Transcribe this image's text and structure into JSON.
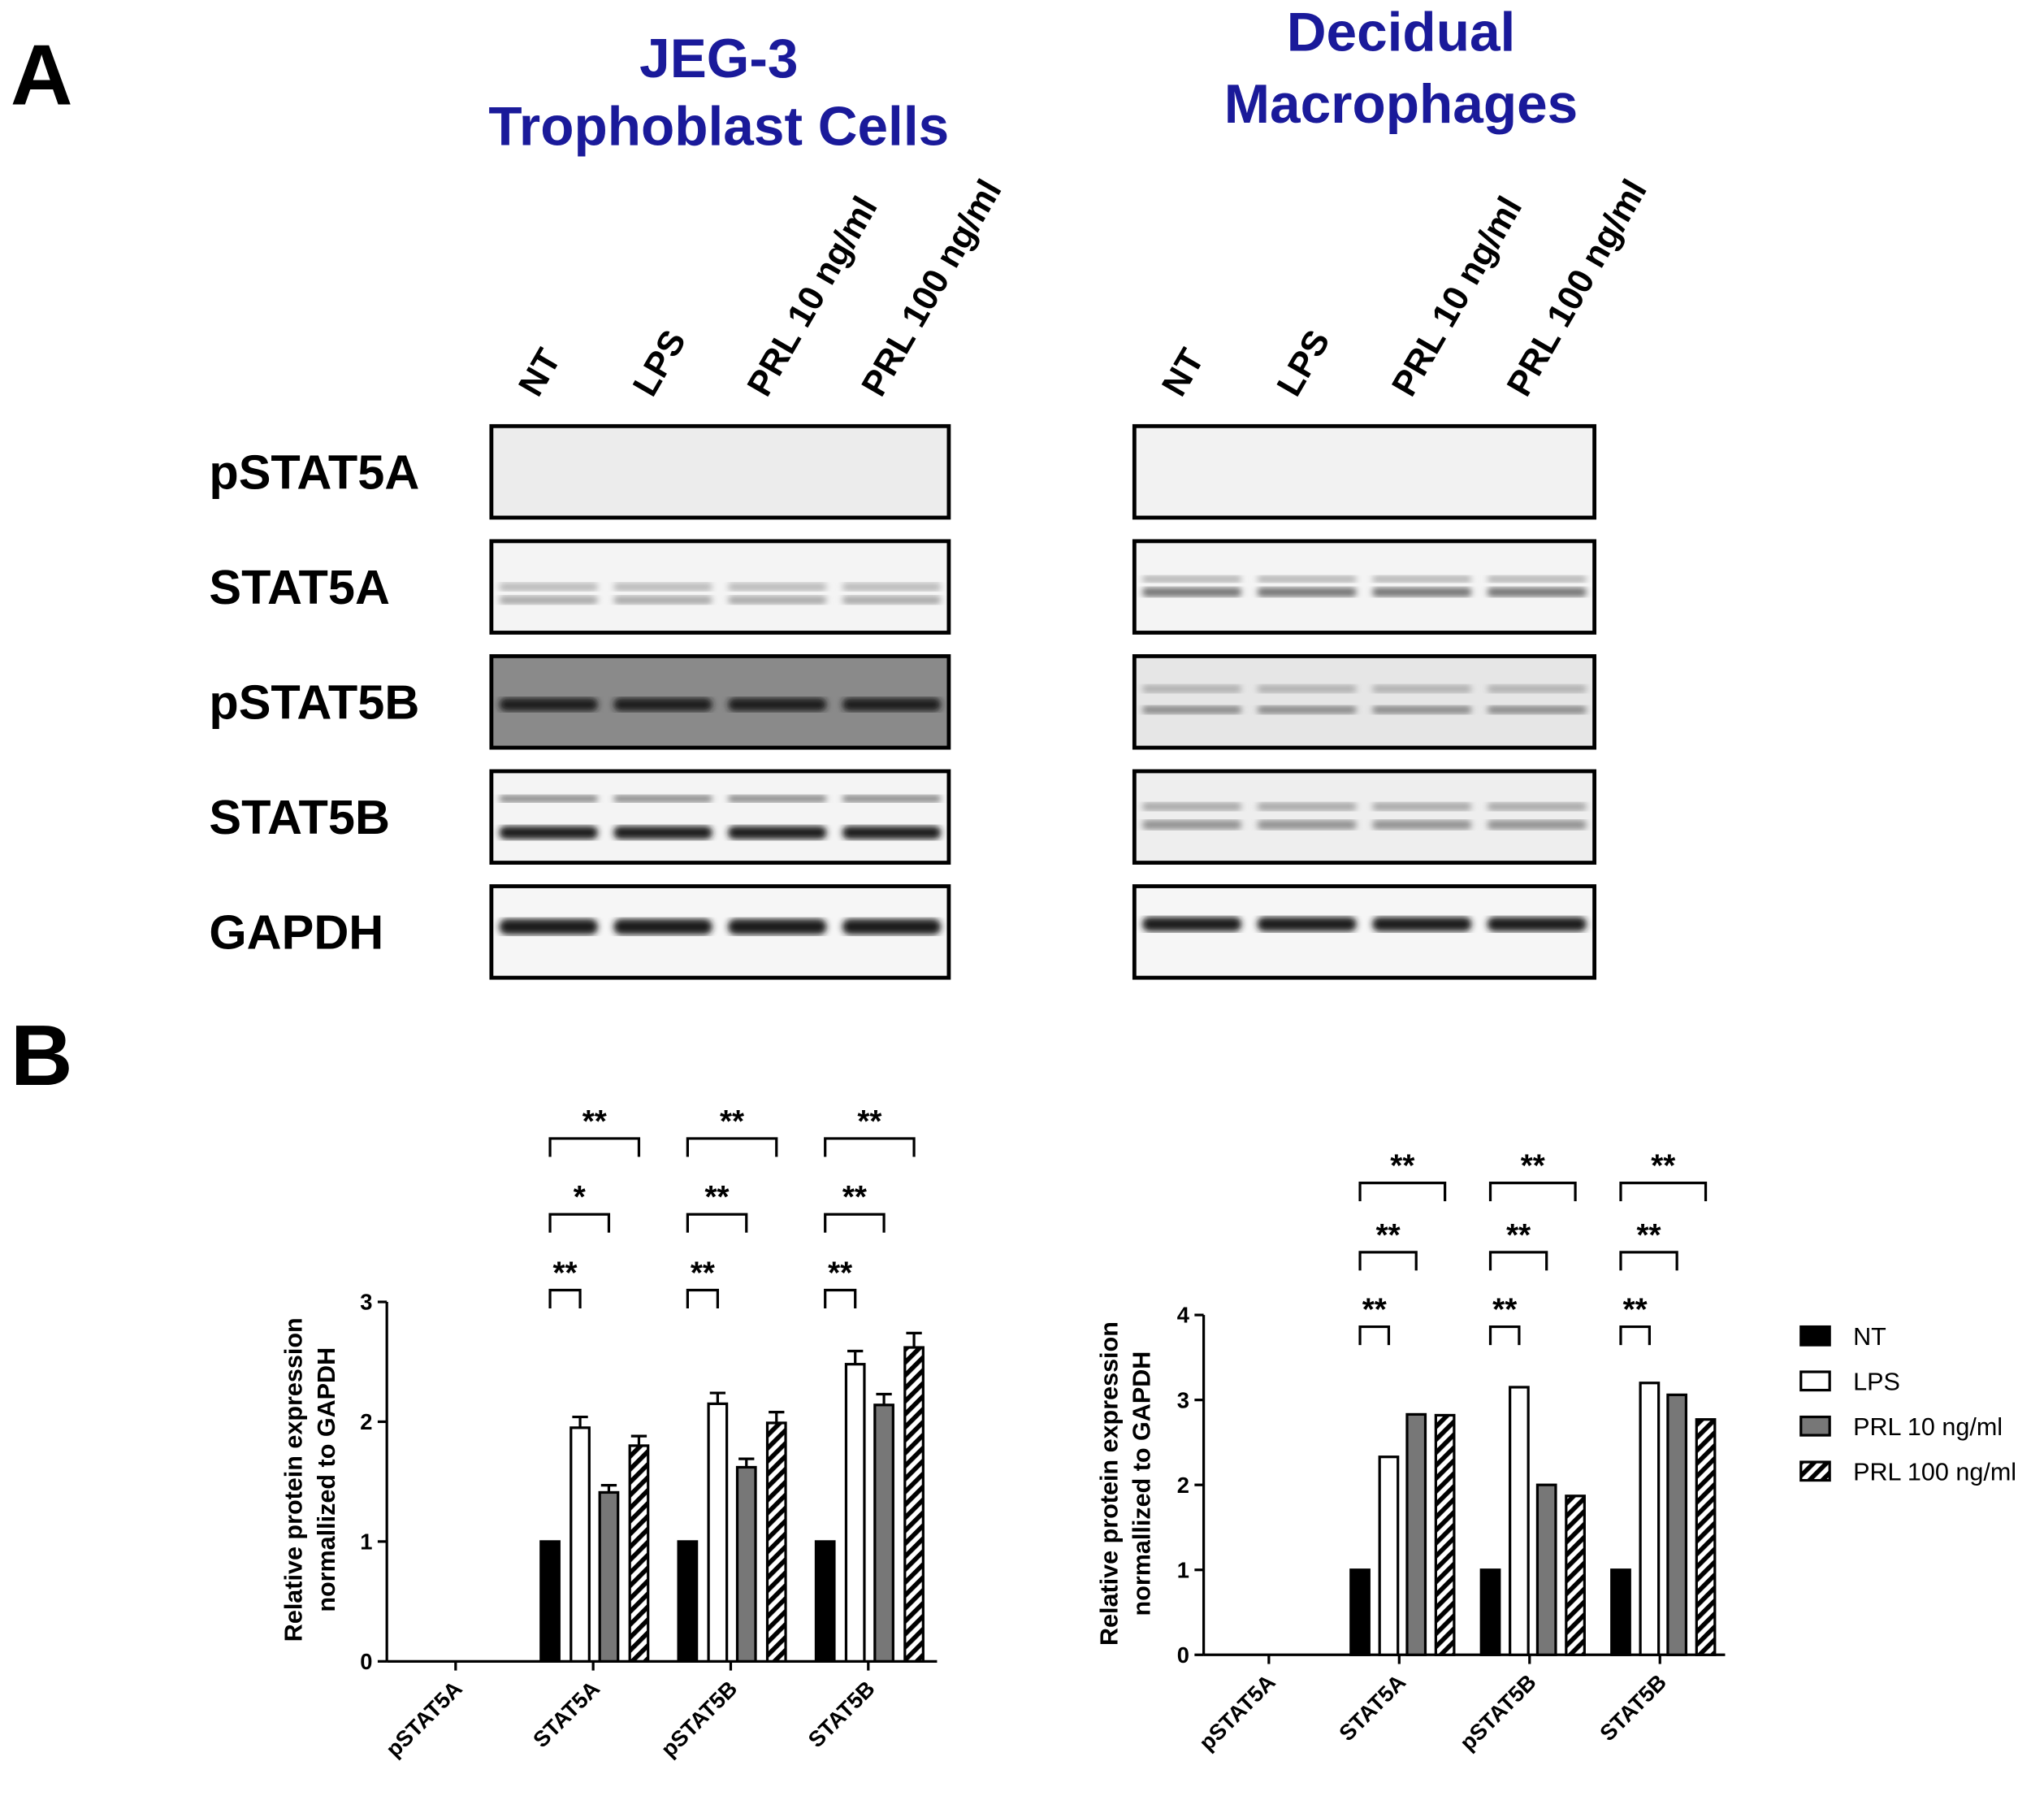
{
  "panels": {
    "a": "A",
    "b": "B"
  },
  "blots": {
    "rows": [
      "pSTAT5A",
      "STAT5A",
      "pSTAT5B",
      "STAT5B",
      "GAPDH"
    ],
    "groups": [
      {
        "title": [
          "JEG-3",
          "Trophoblast Cells"
        ],
        "lanes": [
          "NT",
          "LPS",
          "PRL 10 ng/ml",
          "PRL 100 ng/ml"
        ]
      },
      {
        "title": [
          "Decidual",
          "Macrophages"
        ],
        "lanes": [
          "NT",
          "LPS",
          "PRL 10 ng/ml",
          "PRL 100 ng/ml"
        ]
      }
    ]
  },
  "chart_data": [
    {
      "type": "bar",
      "ylabel": [
        "Relative protein expression",
        "normallized to GAPDH"
      ],
      "categories": [
        "pSTAT5A",
        "STAT5A",
        "pSTAT5B",
        "STAT5B"
      ],
      "series": [
        {
          "name": "NT",
          "color": "#000000",
          "values": [
            0,
            1,
            1,
            1
          ]
        },
        {
          "name": "LPS",
          "color": "#ffffff",
          "values": [
            0,
            1.95,
            2.15,
            2.48
          ],
          "errors": [
            0,
            0.09,
            0.09,
            0.11
          ]
        },
        {
          "name": "PRL 10 ng/ml",
          "color": "#777777",
          "values": [
            0,
            1.41,
            1.62,
            2.14
          ],
          "errors": [
            0,
            0.06,
            0.07,
            0.09
          ]
        },
        {
          "name": "PRL 100 ng/ml",
          "color": "#ffffff",
          "pattern": "hatch",
          "values": [
            0,
            1.8,
            1.99,
            2.62
          ],
          "errors": [
            0,
            0.08,
            0.09,
            0.12
          ]
        }
      ],
      "significance": [
        [],
        [
          "**",
          "*",
          "**"
        ],
        [
          "**",
          "**",
          "**"
        ],
        [
          "**",
          "**",
          "**"
        ]
      ],
      "ylim": [
        0,
        3
      ],
      "yticks": [
        0,
        1,
        2,
        3
      ],
      "legend": false
    },
    {
      "type": "bar",
      "ylabel": [
        "Relative protein expression",
        "normallized to GAPDH"
      ],
      "categories": [
        "pSTAT5A",
        "STAT5A",
        "pSTAT5B",
        "STAT5B"
      ],
      "series": [
        {
          "name": "NT",
          "color": "#000000",
          "values": [
            0,
            1,
            1,
            1
          ]
        },
        {
          "name": "LPS",
          "color": "#ffffff",
          "values": [
            0,
            2.33,
            3.15,
            3.2
          ]
        },
        {
          "name": "PRL 10 ng/ml",
          "color": "#777777",
          "values": [
            0,
            2.83,
            2.0,
            3.06
          ]
        },
        {
          "name": "PRL 100 ng/ml",
          "color": "#ffffff",
          "pattern": "hatch",
          "values": [
            0,
            2.82,
            1.87,
            2.77
          ]
        }
      ],
      "significance": [
        [],
        [
          "**",
          "**",
          "**"
        ],
        [
          "**",
          "**",
          "**"
        ],
        [
          "**",
          "**",
          "**"
        ]
      ],
      "ylim": [
        0,
        4
      ],
      "yticks": [
        0,
        1,
        2,
        3,
        4
      ],
      "legend": "right"
    }
  ]
}
